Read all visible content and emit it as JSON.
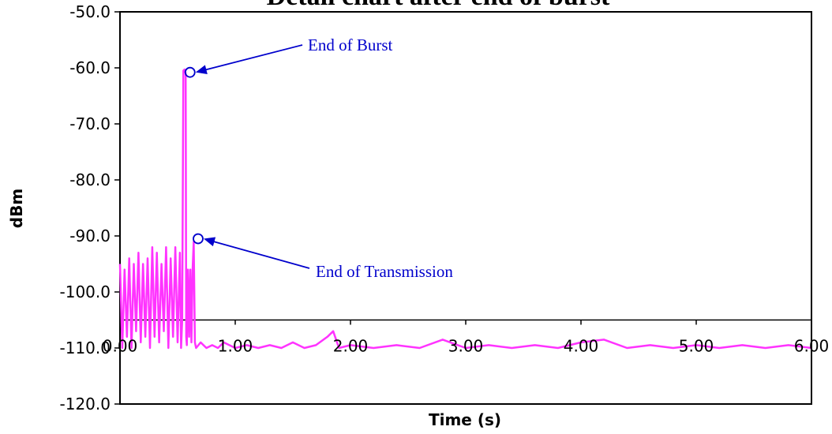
{
  "colors": {
    "series": "#ff33ff",
    "annotation": "#0000cc",
    "axis": "#000000"
  },
  "chart_data": {
    "type": "line",
    "title": "Detail chart after end of burst",
    "xlabel": "Time (s)",
    "ylabel": "dBm",
    "xlim": [
      0,
      6
    ],
    "ylim": [
      -120,
      -50
    ],
    "x_crosses_y_at": -105,
    "y_ticks": [
      -50,
      -60,
      -70,
      -80,
      -90,
      -100,
      -110,
      -120
    ],
    "y_tick_labels": [
      "-50.0",
      "-60.0",
      "-70.0",
      "-80.0",
      "-90.0",
      "-100.0",
      "-110.0",
      "-120.0"
    ],
    "x_ticks": [
      0,
      1,
      2,
      3,
      4,
      5,
      6
    ],
    "x_tick_labels": [
      "0.00",
      "1.00",
      "2.00",
      "3.00",
      "4.00",
      "5.00",
      "6.00"
    ],
    "grid": false,
    "legend": "none",
    "series": [
      {
        "points": [
          [
            0.0,
            -95
          ],
          [
            0.02,
            -110
          ],
          [
            0.04,
            -96
          ],
          [
            0.06,
            -108
          ],
          [
            0.08,
            -94
          ],
          [
            0.1,
            -110
          ],
          [
            0.12,
            -95
          ],
          [
            0.14,
            -107
          ],
          [
            0.16,
            -93
          ],
          [
            0.18,
            -109
          ],
          [
            0.2,
            -95
          ],
          [
            0.22,
            -108
          ],
          [
            0.24,
            -94
          ],
          [
            0.26,
            -110
          ],
          [
            0.28,
            -92
          ],
          [
            0.3,
            -108
          ],
          [
            0.32,
            -93
          ],
          [
            0.34,
            -109
          ],
          [
            0.36,
            -95
          ],
          [
            0.38,
            -107
          ],
          [
            0.4,
            -92
          ],
          [
            0.42,
            -110
          ],
          [
            0.44,
            -94
          ],
          [
            0.46,
            -108
          ],
          [
            0.48,
            -92
          ],
          [
            0.5,
            -109
          ],
          [
            0.52,
            -93
          ],
          [
            0.53,
            -110
          ],
          [
            0.54,
            -105
          ],
          [
            0.55,
            -60.5
          ],
          [
            0.56,
            -60.3
          ],
          [
            0.57,
            -61
          ],
          [
            0.575,
            -108
          ],
          [
            0.58,
            -109.5
          ],
          [
            0.59,
            -96
          ],
          [
            0.6,
            -108
          ],
          [
            0.61,
            -96
          ],
          [
            0.62,
            -109
          ],
          [
            0.63,
            -96
          ],
          [
            0.64,
            -91
          ],
          [
            0.65,
            -109
          ],
          [
            0.66,
            -110
          ],
          [
            0.7,
            -109
          ],
          [
            0.75,
            -110
          ],
          [
            0.8,
            -109.5
          ],
          [
            0.85,
            -110
          ],
          [
            0.9,
            -109
          ],
          [
            1.0,
            -110
          ],
          [
            1.1,
            -109.5
          ],
          [
            1.2,
            -110
          ],
          [
            1.3,
            -109.5
          ],
          [
            1.4,
            -110
          ],
          [
            1.5,
            -109
          ],
          [
            1.6,
            -110
          ],
          [
            1.7,
            -109.5
          ],
          [
            1.8,
            -108
          ],
          [
            1.85,
            -107
          ],
          [
            1.9,
            -110
          ],
          [
            2.0,
            -109.5
          ],
          [
            2.2,
            -110
          ],
          [
            2.4,
            -109.5
          ],
          [
            2.6,
            -110
          ],
          [
            2.8,
            -108.5
          ],
          [
            3.0,
            -110
          ],
          [
            3.2,
            -109.5
          ],
          [
            3.4,
            -110
          ],
          [
            3.6,
            -109.5
          ],
          [
            3.8,
            -110
          ],
          [
            4.0,
            -109
          ],
          [
            4.2,
            -108.5
          ],
          [
            4.4,
            -110
          ],
          [
            4.6,
            -109.5
          ],
          [
            4.8,
            -110
          ],
          [
            5.0,
            -109.5
          ],
          [
            5.2,
            -110
          ],
          [
            5.4,
            -109.5
          ],
          [
            5.6,
            -110
          ],
          [
            5.8,
            -109.5
          ],
          [
            6.0,
            -110
          ]
        ]
      }
    ],
    "annotations": [
      {
        "text": "End of Burst",
        "point": [
          0.56,
          -60.8
        ]
      },
      {
        "text": "End of Transmission",
        "point": [
          0.63,
          -90.5
        ]
      }
    ]
  }
}
